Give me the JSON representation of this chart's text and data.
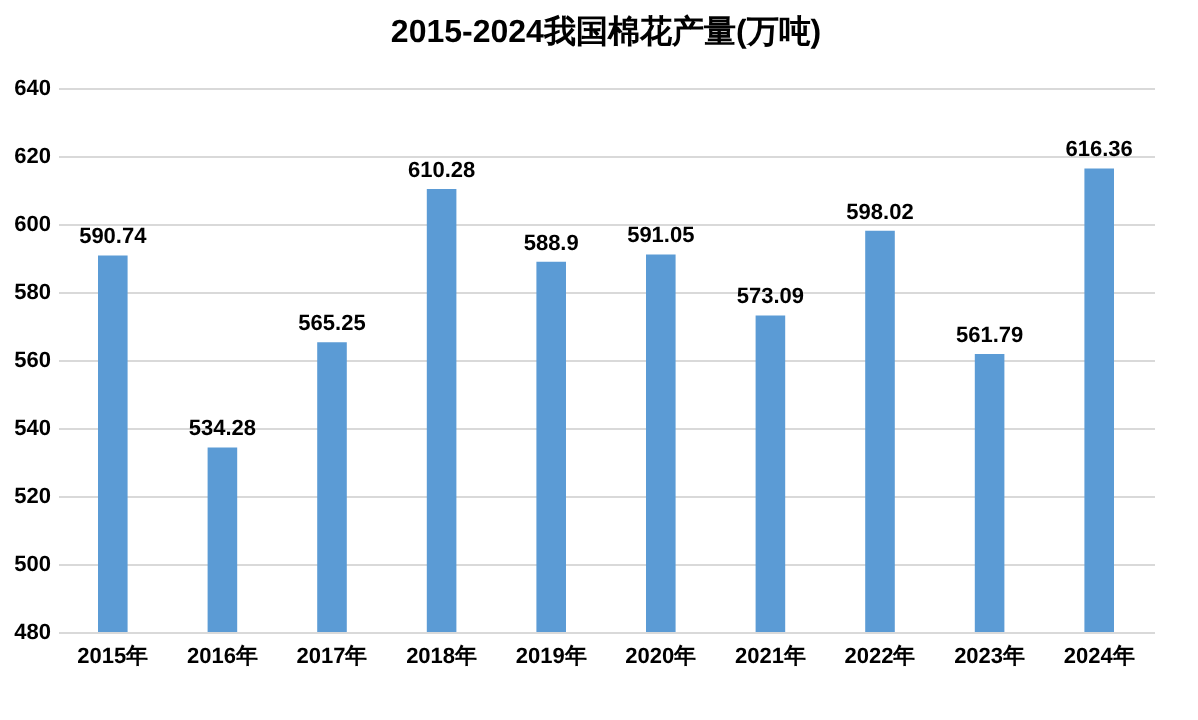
{
  "chart_data": {
    "type": "bar",
    "title": "2015-2024我国棉花产量(万吨)",
    "categories": [
      "2015年",
      "2016年",
      "2017年",
      "2018年",
      "2019年",
      "2020年",
      "2021年",
      "2022年",
      "2023年",
      "2024年"
    ],
    "values": [
      590.74,
      534.28,
      565.25,
      610.28,
      588.9,
      591.05,
      573.09,
      598.02,
      561.79,
      616.36
    ],
    "color": "#5b9bd5",
    "ylim": [
      480,
      640
    ],
    "yticks": [
      480,
      500,
      520,
      540,
      560,
      580,
      600,
      620,
      640
    ],
    "grid": "y",
    "data_labels": true
  }
}
